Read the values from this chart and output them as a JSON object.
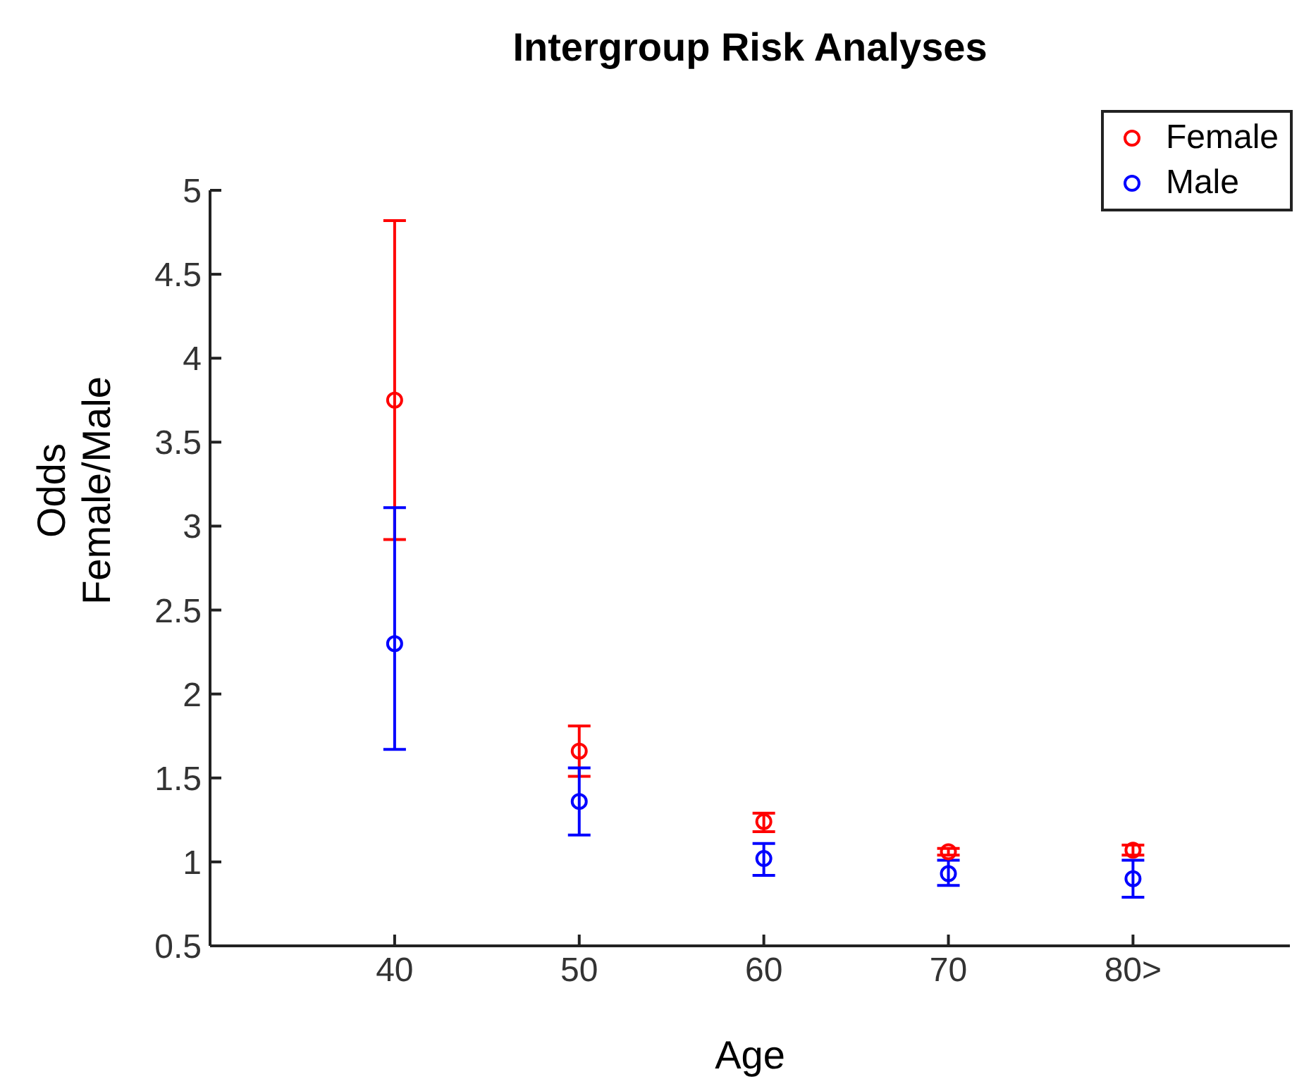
{
  "chart_data": {
    "type": "scatter",
    "title": "Intergroup Risk Analyses",
    "xlabel": "Age",
    "ylabel": "Odds\nFemale/Male",
    "categories": [
      "40",
      "50",
      "60",
      "70",
      "80>"
    ],
    "series": [
      {
        "name": "Female",
        "color": "#ff0000",
        "values": [
          3.75,
          1.66,
          1.24,
          1.06,
          1.07
        ],
        "errors": [
          [
            2.92,
            4.82
          ],
          [
            1.51,
            1.81
          ],
          [
            1.18,
            1.29
          ],
          [
            1.04,
            1.08
          ],
          [
            1.04,
            1.1
          ]
        ]
      },
      {
        "name": "Male",
        "color": "#0000ff",
        "values": [
          2.3,
          1.36,
          1.02,
          0.93,
          0.9
        ],
        "errors": [
          [
            1.67,
            3.11
          ],
          [
            1.16,
            1.56
          ],
          [
            0.92,
            1.11
          ],
          [
            0.86,
            1.01
          ],
          [
            0.79,
            1.01
          ]
        ]
      }
    ],
    "ylim": [
      0.5,
      5
    ],
    "yticks": [
      0.5,
      1,
      1.5,
      2,
      2.5,
      3,
      3.5,
      4,
      4.5,
      5
    ],
    "grid": false,
    "legend": "top right",
    "marker": "circle"
  }
}
